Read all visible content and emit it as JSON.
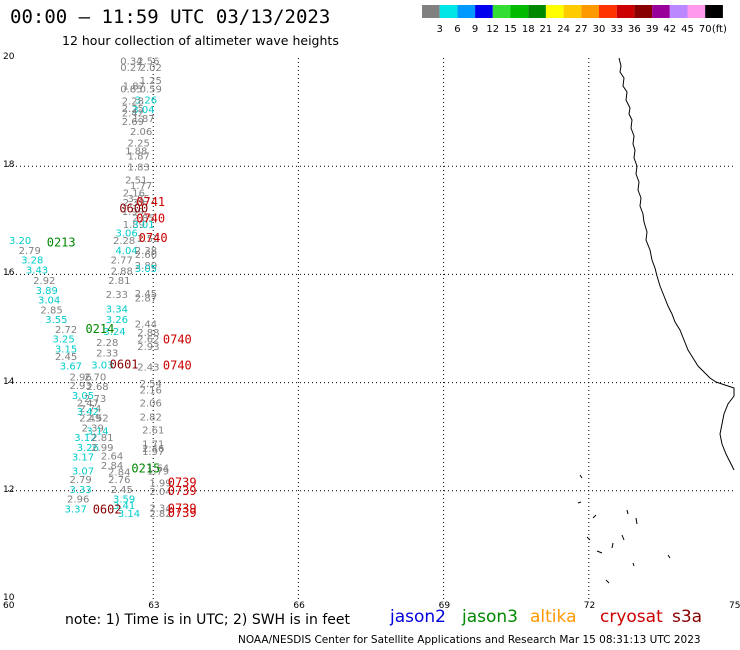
{
  "title": "00:00 – 11:59 UTC 03/13/2023",
  "subtitle": "12 hour collection of altimeter wave heights",
  "colorbar": {
    "colors": [
      "#808080",
      "#00e5e5",
      "#0099ff",
      "#0000ee",
      "#33dd33",
      "#00bb00",
      "#008800",
      "#ffff00",
      "#ffcc00",
      "#ff9900",
      "#ff3300",
      "#cc0000",
      "#880000",
      "#990099",
      "#bb88ff",
      "#ff99ee",
      "#000000"
    ],
    "labels": [
      "3",
      "6",
      "9",
      "12",
      "15",
      "18",
      "21",
      "24",
      "27",
      "30",
      "33",
      "36",
      "39",
      "42",
      "45",
      "70"
    ],
    "unit": "(ft)"
  },
  "axes": {
    "x_ticks": [
      "60",
      "63",
      "66",
      "69",
      "72",
      "75"
    ],
    "y_ticks": [
      "20",
      "18",
      "16",
      "14",
      "12",
      "10"
    ]
  },
  "note": "note: 1) Time is in UTC; 2) SWH is in feet",
  "satellites": [
    {
      "name": "jason2",
      "color": "#0000dd"
    },
    {
      "name": "jason3",
      "color": "#008800"
    },
    {
      "name": "altika",
      "color": "#ff9900"
    },
    {
      "name": "cryosat",
      "color": "#cc0000"
    },
    {
      "name": "s3a",
      "color": "#880000"
    }
  ],
  "footer": "NOAA/NESDIS Center for Satellite Applications and Research    Mar 15 08:31:13 UTC 2023",
  "observations": [
    {
      "lon": 62.55,
      "lat": 19.88,
      "v": "0.34",
      "c": "#808080"
    },
    {
      "lon": 62.9,
      "lat": 19.88,
      "v": "2.56",
      "c": "#808080"
    },
    {
      "lon": 62.55,
      "lat": 19.76,
      "v": "0.27",
      "c": "#808080"
    },
    {
      "lon": 62.95,
      "lat": 19.76,
      "v": "2.02",
      "c": "#808080"
    },
    {
      "lon": 62.95,
      "lat": 19.52,
      "v": "1.25",
      "c": "#808080"
    },
    {
      "lon": 62.6,
      "lat": 19.42,
      "v": "1.87",
      "c": "#808080"
    },
    {
      "lon": 62.55,
      "lat": 19.36,
      "v": "0.85",
      "c": "#808080"
    },
    {
      "lon": 62.95,
      "lat": 19.36,
      "v": "0.59",
      "c": "#808080"
    },
    {
      "lon": 62.85,
      "lat": 19.16,
      "v": "3.26",
      "c": "#00cccc"
    },
    {
      "lon": 62.58,
      "lat": 19.14,
      "v": "2.28",
      "c": "#808080"
    },
    {
      "lon": 62.58,
      "lat": 19.0,
      "v": "2.25",
      "c": "#808080"
    },
    {
      "lon": 62.8,
      "lat": 18.98,
      "v": "3.04",
      "c": "#00cccc"
    },
    {
      "lon": 62.58,
      "lat": 18.92,
      "v": "2.42",
      "c": "#808080"
    },
    {
      "lon": 62.8,
      "lat": 18.82,
      "v": "1.87",
      "c": "#808080"
    },
    {
      "lon": 62.58,
      "lat": 18.76,
      "v": "2.69",
      "c": "#808080"
    },
    {
      "lon": 62.75,
      "lat": 18.58,
      "v": "2.06",
      "c": "#808080"
    },
    {
      "lon": 62.7,
      "lat": 18.36,
      "v": "2.25",
      "c": "#808080"
    },
    {
      "lon": 62.65,
      "lat": 18.22,
      "v": "1.88",
      "c": "#808080"
    },
    {
      "lon": 62.7,
      "lat": 18.12,
      "v": "1.87",
      "c": "#808080"
    },
    {
      "lon": 62.7,
      "lat": 17.92,
      "v": "1.83",
      "c": "#808080"
    },
    {
      "lon": 62.65,
      "lat": 17.68,
      "v": "2.51",
      "c": "#808080"
    },
    {
      "lon": 62.75,
      "lat": 17.58,
      "v": "1.77",
      "c": "#808080"
    },
    {
      "lon": 62.6,
      "lat": 17.44,
      "v": "2.16",
      "c": "#808080"
    },
    {
      "lon": 62.7,
      "lat": 17.34,
      "v": "3.85",
      "c": "#808080"
    },
    {
      "lon": 62.6,
      "lat": 17.26,
      "v": "2.39",
      "c": "#808080"
    },
    {
      "lon": 62.58,
      "lat": 17.1,
      "v": "1.99",
      "c": "#808080"
    },
    {
      "lon": 62.8,
      "lat": 16.98,
      "v": "2.85",
      "c": "#808080"
    },
    {
      "lon": 62.6,
      "lat": 16.86,
      "v": "1.89",
      "c": "#808080"
    },
    {
      "lon": 62.8,
      "lat": 16.86,
      "v": "3.01",
      "c": "#00cccc"
    },
    {
      "lon": 62.45,
      "lat": 16.7,
      "v": "3.06",
      "c": "#00cccc"
    },
    {
      "lon": 62.4,
      "lat": 16.56,
      "v": "2.28",
      "c": "#808080"
    },
    {
      "lon": 62.9,
      "lat": 16.6,
      "v": "2.52",
      "c": "#808080"
    },
    {
      "lon": 60.25,
      "lat": 16.56,
      "v": "3.20",
      "c": "#00cccc"
    },
    {
      "lon": 60.45,
      "lat": 16.38,
      "v": "2.79",
      "c": "#808080"
    },
    {
      "lon": 62.45,
      "lat": 16.38,
      "v": "4.04",
      "c": "#00cccc"
    },
    {
      "lon": 62.85,
      "lat": 16.38,
      "v": "2.38",
      "c": "#808080"
    },
    {
      "lon": 62.85,
      "lat": 16.3,
      "v": "2.60",
      "c": "#808080"
    },
    {
      "lon": 60.5,
      "lat": 16.2,
      "v": "3.28",
      "c": "#00cccc"
    },
    {
      "lon": 62.35,
      "lat": 16.2,
      "v": "2.77",
      "c": "#808080"
    },
    {
      "lon": 62.85,
      "lat": 16.1,
      "v": "2.80",
      "c": "#808080"
    },
    {
      "lon": 62.85,
      "lat": 16.04,
      "v": "3.05",
      "c": "#00cccc"
    },
    {
      "lon": 60.6,
      "lat": 16.02,
      "v": "3.43",
      "c": "#00cccc"
    },
    {
      "lon": 62.35,
      "lat": 16.0,
      "v": "2.88",
      "c": "#808080"
    },
    {
      "lon": 60.75,
      "lat": 15.82,
      "v": "2.92",
      "c": "#808080"
    },
    {
      "lon": 62.3,
      "lat": 15.82,
      "v": "2.81",
      "c": "#808080"
    },
    {
      "lon": 60.8,
      "lat": 15.64,
      "v": "3.89",
      "c": "#00cccc"
    },
    {
      "lon": 62.25,
      "lat": 15.56,
      "v": "2.33",
      "c": "#808080"
    },
    {
      "lon": 62.85,
      "lat": 15.58,
      "v": "2.45",
      "c": "#808080"
    },
    {
      "lon": 62.85,
      "lat": 15.5,
      "v": "2.87",
      "c": "#808080"
    },
    {
      "lon": 60.85,
      "lat": 15.46,
      "v": "3.04",
      "c": "#00cccc"
    },
    {
      "lon": 60.9,
      "lat": 15.28,
      "v": "2.85",
      "c": "#808080"
    },
    {
      "lon": 62.25,
      "lat": 15.3,
      "v": "3.34",
      "c": "#00cccc"
    },
    {
      "lon": 61.0,
      "lat": 15.1,
      "v": "3.55",
      "c": "#00cccc"
    },
    {
      "lon": 62.25,
      "lat": 15.1,
      "v": "3.26",
      "c": "#00cccc"
    },
    {
      "lon": 62.85,
      "lat": 15.02,
      "v": "2.44",
      "c": "#808080"
    },
    {
      "lon": 61.2,
      "lat": 14.92,
      "v": "2.72",
      "c": "#808080"
    },
    {
      "lon": 62.2,
      "lat": 14.88,
      "v": "3.24",
      "c": "#00cccc"
    },
    {
      "lon": 62.9,
      "lat": 14.86,
      "v": "2.88",
      "c": "#808080"
    },
    {
      "lon": 61.15,
      "lat": 14.74,
      "v": "3.25",
      "c": "#00cccc"
    },
    {
      "lon": 62.05,
      "lat": 14.68,
      "v": "2.28",
      "c": "#808080"
    },
    {
      "lon": 62.9,
      "lat": 14.74,
      "v": "2.62",
      "c": "#808080"
    },
    {
      "lon": 61.2,
      "lat": 14.56,
      "v": "3.15",
      "c": "#00cccc"
    },
    {
      "lon": 62.9,
      "lat": 14.6,
      "v": "2.93",
      "c": "#808080"
    },
    {
      "lon": 62.05,
      "lat": 14.48,
      "v": "2.33",
      "c": "#808080"
    },
    {
      "lon": 61.2,
      "lat": 14.42,
      "v": "2.45",
      "c": "#808080"
    },
    {
      "lon": 61.3,
      "lat": 14.24,
      "v": "3.67",
      "c": "#00cccc"
    },
    {
      "lon": 61.95,
      "lat": 14.26,
      "v": "3.03",
      "c": "#00cccc"
    },
    {
      "lon": 62.9,
      "lat": 14.22,
      "v": "2.43",
      "c": "#808080"
    },
    {
      "lon": 61.5,
      "lat": 14.04,
      "v": "2.96",
      "c": "#808080"
    },
    {
      "lon": 61.8,
      "lat": 14.04,
      "v": "2.70",
      "c": "#808080"
    },
    {
      "lon": 61.5,
      "lat": 13.88,
      "v": "2.93",
      "c": "#808080"
    },
    {
      "lon": 61.85,
      "lat": 13.86,
      "v": "2.68",
      "c": "#808080"
    },
    {
      "lon": 62.95,
      "lat": 13.92,
      "v": "2.54",
      "c": "#808080"
    },
    {
      "lon": 62.95,
      "lat": 13.8,
      "v": "2.16",
      "c": "#808080"
    },
    {
      "lon": 61.55,
      "lat": 13.7,
      "v": "3.05",
      "c": "#00cccc"
    },
    {
      "lon": 61.8,
      "lat": 13.64,
      "v": "2.73",
      "c": "#808080"
    },
    {
      "lon": 61.65,
      "lat": 13.56,
      "v": "2.47",
      "c": "#808080"
    },
    {
      "lon": 62.95,
      "lat": 13.56,
      "v": "2.06",
      "c": "#808080"
    },
    {
      "lon": 61.7,
      "lat": 13.46,
      "v": "2.74",
      "c": "#808080"
    },
    {
      "lon": 61.65,
      "lat": 13.4,
      "v": "3.42",
      "c": "#00cccc"
    },
    {
      "lon": 62.95,
      "lat": 13.3,
      "v": "2.82",
      "c": "#808080"
    },
    {
      "lon": 61.7,
      "lat": 13.28,
      "v": "2.49",
      "c": "#808080"
    },
    {
      "lon": 61.85,
      "lat": 13.28,
      "v": "2.52",
      "c": "#808080"
    },
    {
      "lon": 61.75,
      "lat": 13.1,
      "v": "2.39",
      "c": "#808080"
    },
    {
      "lon": 61.85,
      "lat": 13.04,
      "v": "3.14",
      "c": "#00cccc"
    },
    {
      "lon": 63.0,
      "lat": 13.06,
      "v": "2.61",
      "c": "#808080"
    },
    {
      "lon": 61.6,
      "lat": 12.92,
      "v": "3.12",
      "c": "#00cccc"
    },
    {
      "lon": 61.95,
      "lat": 12.92,
      "v": "2.81",
      "c": "#808080"
    },
    {
      "lon": 61.65,
      "lat": 12.74,
      "v": "3.26",
      "c": "#00cccc"
    },
    {
      "lon": 61.95,
      "lat": 12.74,
      "v": "2.99",
      "c": "#808080"
    },
    {
      "lon": 63.0,
      "lat": 12.8,
      "v": "1.71",
      "c": "#808080"
    },
    {
      "lon": 63.0,
      "lat": 12.72,
      "v": "2.46",
      "c": "#808080"
    },
    {
      "lon": 63.0,
      "lat": 12.66,
      "v": "1.97",
      "c": "#808080"
    },
    {
      "lon": 61.55,
      "lat": 12.56,
      "v": "3.17",
      "c": "#00cccc"
    },
    {
      "lon": 62.15,
      "lat": 12.58,
      "v": "2.64",
      "c": "#808080"
    },
    {
      "lon": 62.15,
      "lat": 12.4,
      "v": "2.84",
      "c": "#808080"
    },
    {
      "lon": 63.1,
      "lat": 12.36,
      "v": "1.64",
      "c": "#808080"
    },
    {
      "lon": 63.1,
      "lat": 12.3,
      "v": "1.79",
      "c": "#808080"
    },
    {
      "lon": 61.55,
      "lat": 12.3,
      "v": "3.07",
      "c": "#00cccc"
    },
    {
      "lon": 62.3,
      "lat": 12.28,
      "v": "2.84",
      "c": "#808080"
    },
    {
      "lon": 61.5,
      "lat": 12.14,
      "v": "2.79",
      "c": "#808080"
    },
    {
      "lon": 62.3,
      "lat": 12.14,
      "v": "2.76",
      "c": "#808080"
    },
    {
      "lon": 63.15,
      "lat": 12.08,
      "v": "1.99",
      "c": "#808080"
    },
    {
      "lon": 61.5,
      "lat": 11.96,
      "v": "3.33",
      "c": "#00cccc"
    },
    {
      "lon": 62.35,
      "lat": 11.96,
      "v": "2.45",
      "c": "#808080"
    },
    {
      "lon": 63.15,
      "lat": 11.92,
      "v": "2.04",
      "c": "#808080"
    },
    {
      "lon": 61.45,
      "lat": 11.78,
      "v": "2.96",
      "c": "#808080"
    },
    {
      "lon": 62.4,
      "lat": 11.78,
      "v": "3.59",
      "c": "#00cccc"
    },
    {
      "lon": 61.4,
      "lat": 11.6,
      "v": "3.37",
      "c": "#00cccc"
    },
    {
      "lon": 62.4,
      "lat": 11.66,
      "v": "3.41",
      "c": "#00cccc"
    },
    {
      "lon": 63.15,
      "lat": 11.62,
      "v": "2.34",
      "c": "#808080"
    },
    {
      "lon": 62.5,
      "lat": 11.52,
      "v": "3.14",
      "c": "#00cccc"
    },
    {
      "lon": 63.15,
      "lat": 11.52,
      "v": "2.82",
      "c": "#808080"
    }
  ],
  "track_times": [
    {
      "lon": 62.65,
      "lat": 17.26,
      "v": "0741",
      "c": "#cc0000"
    },
    {
      "lon": 62.3,
      "lat": 17.14,
      "v": "0600",
      "c": "#880000"
    },
    {
      "lon": 62.65,
      "lat": 16.96,
      "v": "0740",
      "c": "#cc0000"
    },
    {
      "lon": 62.7,
      "lat": 16.6,
      "v": "0740",
      "c": "#cc0000"
    },
    {
      "lon": 60.8,
      "lat": 16.52,
      "v": "0213",
      "c": "#008800"
    },
    {
      "lon": 61.6,
      "lat": 14.92,
      "v": "0214",
      "c": "#008800"
    },
    {
      "lon": 63.2,
      "lat": 14.72,
      "v": "0740",
      "c": "#cc0000"
    },
    {
      "lon": 62.1,
      "lat": 14.26,
      "v": "0601",
      "c": "#880000"
    },
    {
      "lon": 63.2,
      "lat": 14.24,
      "v": "0740",
      "c": "#cc0000"
    },
    {
      "lon": 62.55,
      "lat": 12.34,
      "v": "0215",
      "c": "#008800"
    },
    {
      "lon": 63.3,
      "lat": 12.08,
      "v": "0739",
      "c": "#cc0000"
    },
    {
      "lon": 63.3,
      "lat": 11.92,
      "v": "0739",
      "c": "#cc0000"
    },
    {
      "lon": 61.75,
      "lat": 11.58,
      "v": "0602",
      "c": "#880000"
    },
    {
      "lon": 63.3,
      "lat": 11.6,
      "v": "0739",
      "c": "#cc0000"
    },
    {
      "lon": 63.3,
      "lat": 11.52,
      "v": "0739",
      "c": "#cc0000"
    }
  ]
}
